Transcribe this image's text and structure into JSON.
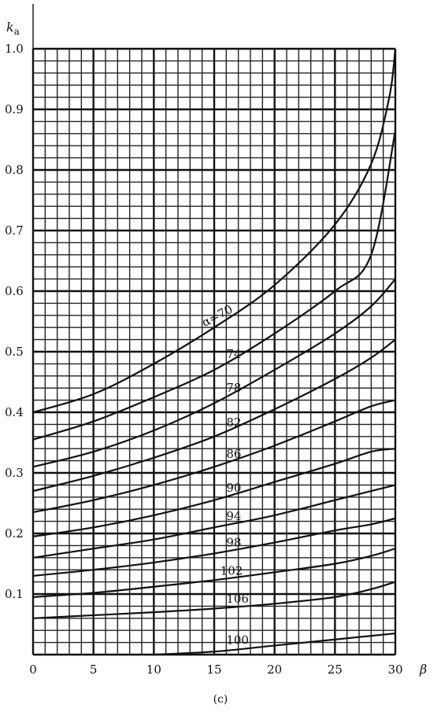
{
  "chart_data": {
    "type": "line",
    "ylabel_main": "k",
    "ylabel_sub": "a",
    "xlabel": "β",
    "caption": "(c)",
    "xlim": [
      0,
      30
    ],
    "ylim": [
      0,
      1.0
    ],
    "x_ticks": [
      "0",
      "5",
      "10",
      "15",
      "20",
      "25",
      "30"
    ],
    "y_ticks": [
      "0.1",
      "0.2",
      "0.3",
      "0.4",
      "0.5",
      "0.6",
      "0.7",
      "0.8",
      "0.9",
      "1.0"
    ],
    "grid": true,
    "series": [
      {
        "name": "α=70",
        "x": [
          0,
          5,
          10,
          15,
          20,
          25,
          28,
          29.5,
          30
        ],
        "y": [
          0.4,
          0.43,
          0.48,
          0.54,
          0.61,
          0.71,
          0.81,
          0.92,
          1.0
        ]
      },
      {
        "name": "74",
        "x": [
          0,
          5,
          10,
          15,
          20,
          25,
          28,
          30
        ],
        "y": [
          0.355,
          0.385,
          0.425,
          0.47,
          0.53,
          0.6,
          0.66,
          0.865
        ]
      },
      {
        "name": "78",
        "x": [
          0,
          5,
          10,
          15,
          20,
          25,
          28,
          30
        ],
        "y": [
          0.31,
          0.335,
          0.37,
          0.415,
          0.47,
          0.53,
          0.575,
          0.62
        ]
      },
      {
        "name": "82",
        "x": [
          0,
          5,
          10,
          15,
          20,
          25,
          28,
          30
        ],
        "y": [
          0.27,
          0.295,
          0.325,
          0.36,
          0.405,
          0.455,
          0.49,
          0.52
        ]
      },
      {
        "name": "86",
        "x": [
          0,
          5,
          10,
          15,
          20,
          25,
          28,
          30
        ],
        "y": [
          0.235,
          0.255,
          0.28,
          0.31,
          0.345,
          0.385,
          0.41,
          0.42
        ]
      },
      {
        "name": "90",
        "x": [
          0,
          5,
          10,
          15,
          20,
          25,
          28,
          30
        ],
        "y": [
          0.195,
          0.21,
          0.23,
          0.255,
          0.285,
          0.315,
          0.335,
          0.34
        ]
      },
      {
        "name": "94",
        "x": [
          0,
          5,
          10,
          15,
          20,
          25,
          28,
          30
        ],
        "y": [
          0.16,
          0.175,
          0.19,
          0.21,
          0.23,
          0.255,
          0.27,
          0.28
        ]
      },
      {
        "name": "98",
        "x": [
          0,
          5,
          10,
          15,
          20,
          25,
          28,
          30
        ],
        "y": [
          0.13,
          0.14,
          0.152,
          0.167,
          0.185,
          0.205,
          0.215,
          0.225
        ]
      },
      {
        "name": "102",
        "x": [
          0,
          5,
          10,
          15,
          20,
          25,
          28,
          30
        ],
        "y": [
          0.095,
          0.102,
          0.112,
          0.123,
          0.136,
          0.15,
          0.163,
          0.175
        ]
      },
      {
        "name": "106",
        "x": [
          0,
          5,
          10,
          15,
          20,
          25,
          28,
          30
        ],
        "y": [
          0.06,
          0.065,
          0.07,
          0.076,
          0.084,
          0.095,
          0.108,
          0.12
        ]
      },
      {
        "name": "100",
        "x": [
          10,
          15,
          20,
          25,
          30
        ],
        "y": [
          0.0,
          0.005,
          0.015,
          0.025,
          0.035
        ]
      }
    ]
  }
}
